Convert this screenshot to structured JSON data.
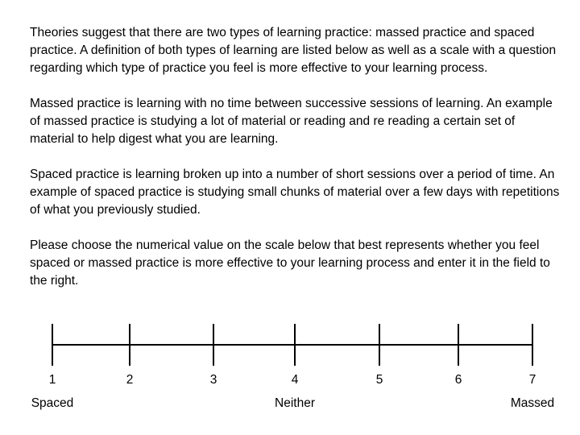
{
  "paragraphs": [
    "Theories suggest that there are two types of learning practice: massed practice and spaced practice. A definition of both types of learning are listed below as well as a scale with a question regarding which type of practice you feel is more effective to your learning process.",
    "Massed practice is learning with no time between successive sessions of learning. An example of massed practice is studying a lot of material or reading and re reading a certain set of material to help digest what you are learning.",
    "Spaced practice is learning broken up into a number of short sessions over a period of time. An example of spaced practice is studying small chunks of material over a few days with repetitions of what you previously studied.",
    "Please choose the numerical value on the scale below that best represents whether you feel spaced or massed practice is more effective to your learning process and enter it in the field to the right."
  ],
  "scale": {
    "ticks": [
      "1",
      "2",
      "3",
      "4",
      "5",
      "6",
      "7"
    ],
    "anchors": {
      "left": "Spaced",
      "middle": "Neither",
      "right": "Massed"
    }
  }
}
